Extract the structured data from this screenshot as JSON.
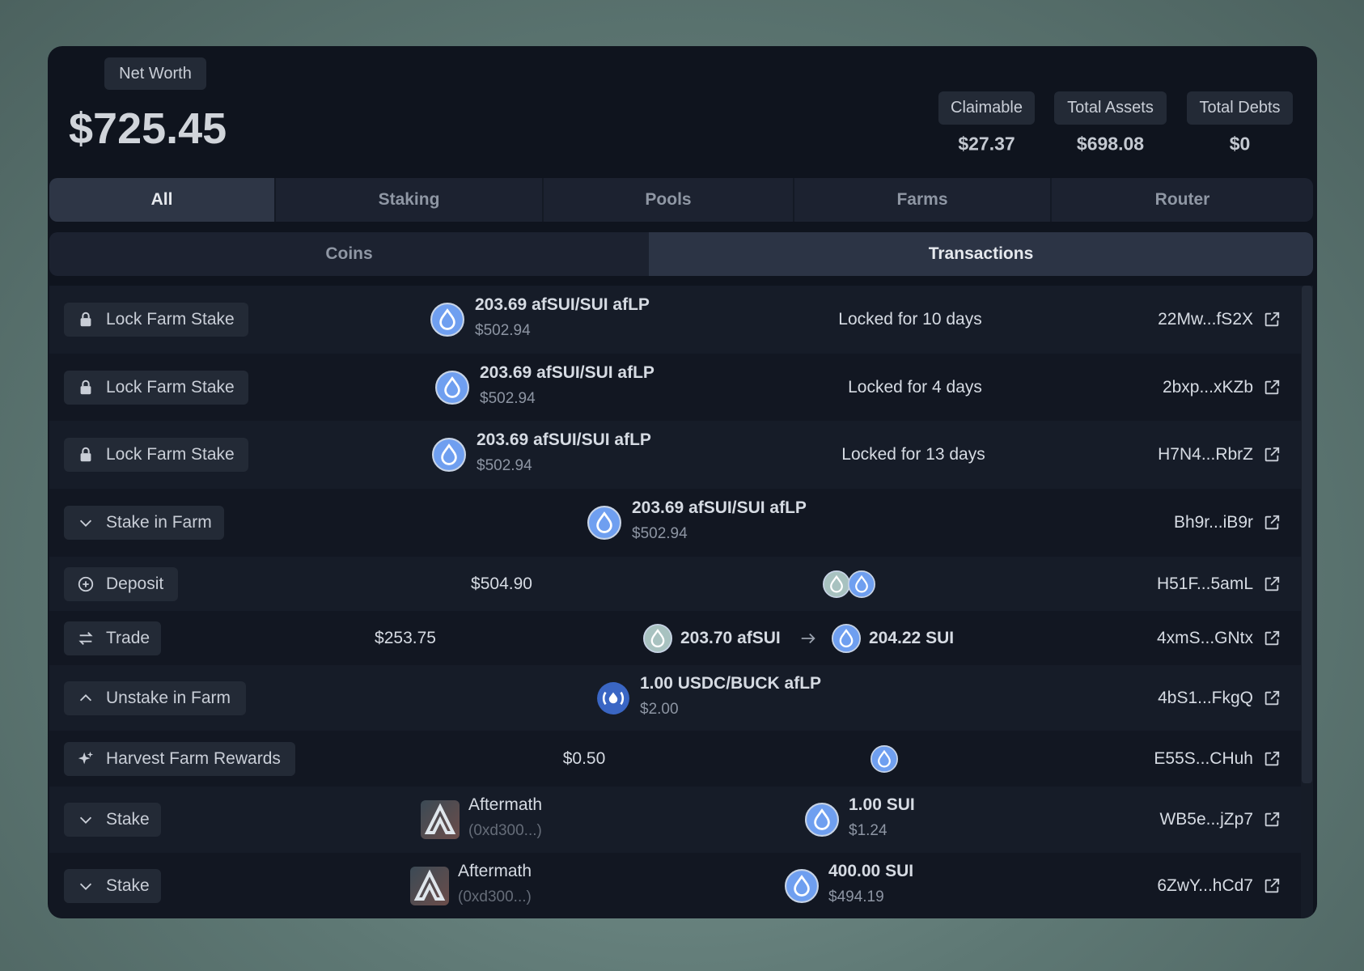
{
  "header": {
    "label": "Net Worth",
    "value": "$725.45",
    "stats": [
      {
        "label": "Claimable",
        "value": "$27.37"
      },
      {
        "label": "Total Assets",
        "value": "$698.08"
      },
      {
        "label": "Total Debts",
        "value": "$0"
      }
    ]
  },
  "tabs": [
    "All",
    "Staking",
    "Pools",
    "Farms",
    "Router"
  ],
  "subtabs": [
    "Coins",
    "Transactions"
  ],
  "transactions": [
    {
      "action": "Lock Farm Stake",
      "amount": "203.69 afSUI/SUI afLP",
      "usd": "$502.94",
      "detail": "Locked for 10 days",
      "tx": "22Mw...fS2X"
    },
    {
      "action": "Lock Farm Stake",
      "amount": "203.69 afSUI/SUI afLP",
      "usd": "$502.94",
      "detail": "Locked for 4 days",
      "tx": "2bxp...xKZb"
    },
    {
      "action": "Lock Farm Stake",
      "amount": "203.69 afSUI/SUI afLP",
      "usd": "$502.94",
      "detail": "Locked for 13 days",
      "tx": "H7N4...RbrZ"
    },
    {
      "action": "Stake in Farm",
      "amount": "203.69 afSUI/SUI afLP",
      "usd": "$502.94",
      "tx": "Bh9r...iB9r"
    },
    {
      "action": "Deposit",
      "usd": "$504.90",
      "tx": "H51F...5amL"
    },
    {
      "action": "Trade",
      "usd": "$253.75",
      "from": "203.70 afSUI",
      "to": "204.22 SUI",
      "tx": "4xmS...GNtx"
    },
    {
      "action": "Unstake in Farm",
      "amount": "1.00 USDC/BUCK afLP",
      "usd": "$2.00",
      "tx": "4bS1...FkgQ"
    },
    {
      "action": "Harvest Farm Rewards",
      "usd": "$0.50",
      "tx": "E55S...CHuh"
    },
    {
      "action": "Stake",
      "entity": "Aftermath",
      "address": "(0xd300...)",
      "amount": "1.00 SUI",
      "usd": "$1.24",
      "tx": "WB5e...jZp7"
    },
    {
      "action": "Stake",
      "entity": "Aftermath",
      "address": "(0xd300...)",
      "amount": "400.00 SUI",
      "usd": "$494.19",
      "tx": "6ZwY...hCd7"
    }
  ]
}
